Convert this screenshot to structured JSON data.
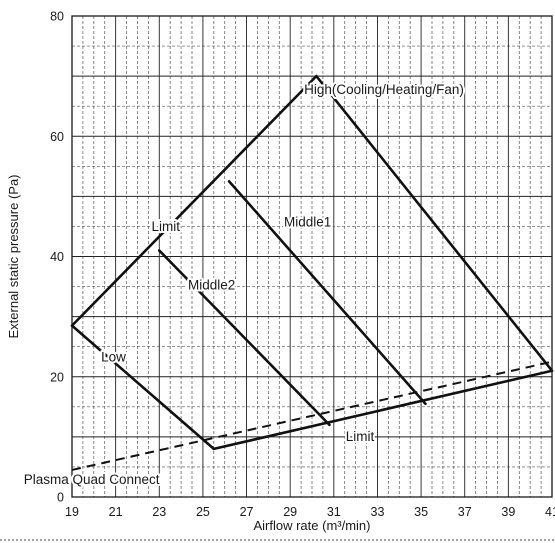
{
  "chart_data": {
    "type": "line",
    "title": "",
    "xlabel": "Airflow rate (m³/min)",
    "ylabel": "External static pressure (Pa)",
    "xlim": [
      19,
      41
    ],
    "ylim": [
      0,
      80
    ],
    "xticks": [
      19,
      21,
      23,
      25,
      27,
      29,
      31,
      33,
      35,
      37,
      39,
      41
    ],
    "yticks": [
      0,
      20,
      40,
      60,
      80
    ],
    "grid": true,
    "series": [
      {
        "name": "High(Cooling/Heating/Fan)",
        "style": "solid",
        "points": [
          [
            30.2,
            70
          ],
          [
            41,
            21
          ]
        ]
      },
      {
        "name": "Middle1",
        "style": "solid",
        "points": [
          [
            26.2,
            52.5
          ],
          [
            35.2,
            15.5
          ]
        ]
      },
      {
        "name": "Middle2",
        "style": "solid",
        "points": [
          [
            23,
            41
          ],
          [
            30.8,
            12
          ]
        ]
      },
      {
        "name": "Low",
        "style": "solid",
        "points": [
          [
            19,
            28.5
          ],
          [
            25.5,
            8
          ]
        ]
      },
      {
        "name": "Limit",
        "style": "solid",
        "points": [
          [
            19,
            28.5
          ],
          [
            30.2,
            70
          ]
        ]
      },
      {
        "name": "Limit",
        "style": "solid",
        "points": [
          [
            25.5,
            8
          ],
          [
            41,
            21
          ]
        ]
      },
      {
        "name": "Plasma Quad Connect",
        "style": "dashed",
        "points": [
          [
            19,
            4.5
          ],
          [
            41,
            22.5
          ]
        ]
      }
    ],
    "annotations": [
      {
        "text": "High(Cooling/Heating/Fan)",
        "x": 33.3,
        "y": 67
      },
      {
        "text": "Middle1",
        "x": 29.8,
        "y": 45
      },
      {
        "text": "Middle2",
        "x": 25.4,
        "y": 34.5
      },
      {
        "text": "Limit",
        "x": 23.3,
        "y": 44.2
      },
      {
        "text": "Low",
        "x": 20.9,
        "y": 22.5
      },
      {
        "text": "Limit",
        "x": 32.2,
        "y": 9.3
      },
      {
        "text": "Plasma Quad Connect",
        "x": 19.9,
        "y": 2.2
      }
    ]
  }
}
